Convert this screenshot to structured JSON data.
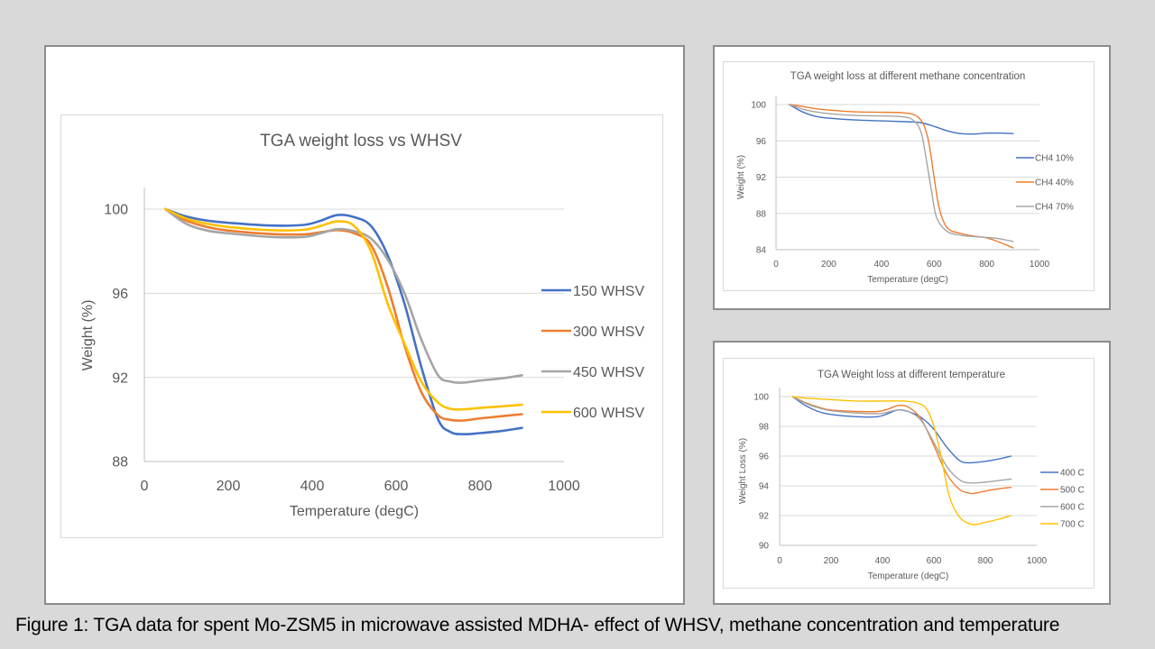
{
  "caption": "Figure 1: TGA data for spent Mo-ZSM5 in microwave assisted MDHA- effect of WHSV, methane concentration and temperature",
  "chart_data": [
    {
      "id": "whsv",
      "type": "line",
      "title": "TGA weight loss vs WHSV",
      "xlabel": "Temperature (degC)",
      "ylabel": "Weight (%)",
      "xlim": [
        0,
        1000
      ],
      "ylim": [
        88,
        100
      ],
      "xticks": [
        0,
        200,
        400,
        600,
        800,
        1000
      ],
      "yticks": [
        88,
        92,
        96,
        100
      ],
      "grid": true,
      "legend": "right",
      "series": [
        {
          "name": "150 WHSV",
          "color": "#4472c4",
          "x": [
            50,
            100,
            150,
            200,
            300,
            380,
            420,
            460,
            500,
            540,
            580,
            620,
            660,
            700,
            730,
            760,
            800,
            850,
            900
          ],
          "y": [
            100,
            99.65,
            99.45,
            99.35,
            99.22,
            99.25,
            99.45,
            99.72,
            99.62,
            99.2,
            97.8,
            95.5,
            92.5,
            90.0,
            89.4,
            89.3,
            89.35,
            89.45,
            89.6
          ]
        },
        {
          "name": "300 WHSV",
          "color": "#ed7d31",
          "x": [
            50,
            100,
            150,
            200,
            300,
            380,
            420,
            460,
            500,
            540,
            580,
            620,
            660,
            700,
            730,
            760,
            800,
            850,
            900
          ],
          "y": [
            100,
            99.45,
            99.15,
            98.98,
            98.82,
            98.8,
            98.9,
            99.0,
            98.85,
            98.3,
            96.3,
            93.5,
            91.3,
            90.2,
            89.98,
            89.95,
            90.05,
            90.15,
            90.25
          ]
        },
        {
          "name": "450 WHSV",
          "color": "#a5a5a5",
          "x": [
            50,
            100,
            150,
            200,
            300,
            380,
            420,
            460,
            500,
            540,
            580,
            620,
            660,
            700,
            730,
            760,
            800,
            850,
            900
          ],
          "y": [
            100,
            99.3,
            98.98,
            98.85,
            98.68,
            98.68,
            98.85,
            99.05,
            98.95,
            98.6,
            97.6,
            96.0,
            93.8,
            92.1,
            91.8,
            91.75,
            91.85,
            91.95,
            92.1
          ]
        },
        {
          "name": "600 WHSV",
          "color": "#ffc000",
          "x": [
            50,
            100,
            150,
            200,
            300,
            380,
            420,
            460,
            500,
            540,
            580,
            620,
            660,
            700,
            730,
            760,
            800,
            850,
            900
          ],
          "y": [
            100,
            99.55,
            99.3,
            99.15,
            99.0,
            99.02,
            99.2,
            99.42,
            99.2,
            98.0,
            95.5,
            93.6,
            91.8,
            90.8,
            90.5,
            90.48,
            90.55,
            90.62,
            90.7
          ]
        }
      ]
    },
    {
      "id": "methane",
      "type": "line",
      "title": "TGA weight loss at different methane concentration",
      "xlabel": "Temperature (degC)",
      "ylabel": "Weight (%)",
      "xlim": [
        0,
        1000
      ],
      "ylim": [
        84,
        100
      ],
      "xticks": [
        0,
        200,
        400,
        600,
        800,
        1000
      ],
      "yticks": [
        84,
        88,
        92,
        96,
        100
      ],
      "grid": true,
      "legend": "right",
      "series": [
        {
          "name": "CH4 10%",
          "color": "#4472c4",
          "x": [
            50,
            100,
            150,
            200,
            300,
            400,
            500,
            550,
            600,
            650,
            700,
            750,
            800,
            850,
            900
          ],
          "y": [
            100,
            99.2,
            98.7,
            98.5,
            98.3,
            98.2,
            98.1,
            98.0,
            97.6,
            97.1,
            96.8,
            96.75,
            96.85,
            96.85,
            96.8
          ]
        },
        {
          "name": "CH4 40%",
          "color": "#ed7d31",
          "x": [
            50,
            100,
            150,
            200,
            300,
            400,
            480,
            530,
            560,
            580,
            600,
            620,
            650,
            700,
            750,
            800,
            850,
            900
          ],
          "y": [
            100,
            99.8,
            99.55,
            99.4,
            99.2,
            99.15,
            99.1,
            98.8,
            97.8,
            95.8,
            92.0,
            88.5,
            86.4,
            85.8,
            85.5,
            85.3,
            84.8,
            84.2
          ]
        },
        {
          "name": "CH4 70%",
          "color": "#a5a5a5",
          "x": [
            50,
            100,
            150,
            200,
            300,
            400,
            480,
            520,
            550,
            570,
            590,
            610,
            650,
            700,
            750,
            800,
            850,
            900
          ],
          "y": [
            100,
            99.5,
            99.2,
            99.0,
            98.8,
            98.75,
            98.65,
            98.3,
            97.0,
            94.0,
            90.5,
            87.5,
            86.0,
            85.6,
            85.45,
            85.35,
            85.2,
            84.9
          ]
        }
      ]
    },
    {
      "id": "temperature",
      "type": "line",
      "title": "TGA Weight loss at different temperature",
      "xlabel": "Temperature (degC)",
      "ylabel": "Weight Loss (%)",
      "xlim": [
        0,
        1000
      ],
      "ylim": [
        90,
        100
      ],
      "xticks": [
        0,
        200,
        400,
        600,
        800,
        1000
      ],
      "yticks": [
        90,
        92,
        94,
        96,
        98,
        100
      ],
      "grid": true,
      "legend": "right",
      "series": [
        {
          "name": "400 C",
          "color": "#4472c4",
          "x": [
            50,
            100,
            150,
            200,
            300,
            380,
            420,
            460,
            500,
            550,
            600,
            650,
            700,
            740,
            800,
            850,
            900
          ],
          "y": [
            100,
            99.4,
            99.0,
            98.8,
            98.65,
            98.65,
            98.85,
            99.1,
            99.0,
            98.6,
            97.8,
            96.6,
            95.7,
            95.55,
            95.65,
            95.8,
            96.0
          ]
        },
        {
          "name": "500 C",
          "color": "#ed7d31",
          "x": [
            50,
            100,
            150,
            200,
            300,
            380,
            420,
            460,
            500,
            550,
            600,
            650,
            700,
            740,
            760,
            800,
            850,
            900
          ],
          "y": [
            100,
            99.6,
            99.3,
            99.1,
            99.0,
            99.0,
            99.15,
            99.4,
            99.3,
            98.5,
            96.7,
            94.8,
            93.75,
            93.5,
            93.5,
            93.65,
            93.8,
            93.9
          ]
        },
        {
          "name": "600 C",
          "color": "#a5a5a5",
          "x": [
            50,
            100,
            150,
            200,
            300,
            380,
            420,
            460,
            500,
            550,
            600,
            650,
            700,
            740,
            800,
            850,
            900
          ],
          "y": [
            100,
            99.55,
            99.25,
            99.05,
            98.9,
            98.85,
            98.95,
            99.1,
            99.0,
            98.4,
            96.9,
            95.3,
            94.4,
            94.2,
            94.25,
            94.35,
            94.45
          ]
        },
        {
          "name": "700 C",
          "color": "#ffc000",
          "x": [
            50,
            100,
            150,
            200,
            300,
            400,
            480,
            530,
            570,
            600,
            630,
            660,
            700,
            750,
            800,
            850,
            900
          ],
          "y": [
            100,
            99.9,
            99.85,
            99.8,
            99.7,
            99.7,
            99.7,
            99.6,
            99.2,
            98.0,
            95.8,
            93.3,
            91.9,
            91.4,
            91.55,
            91.75,
            92.0
          ]
        }
      ]
    }
  ]
}
